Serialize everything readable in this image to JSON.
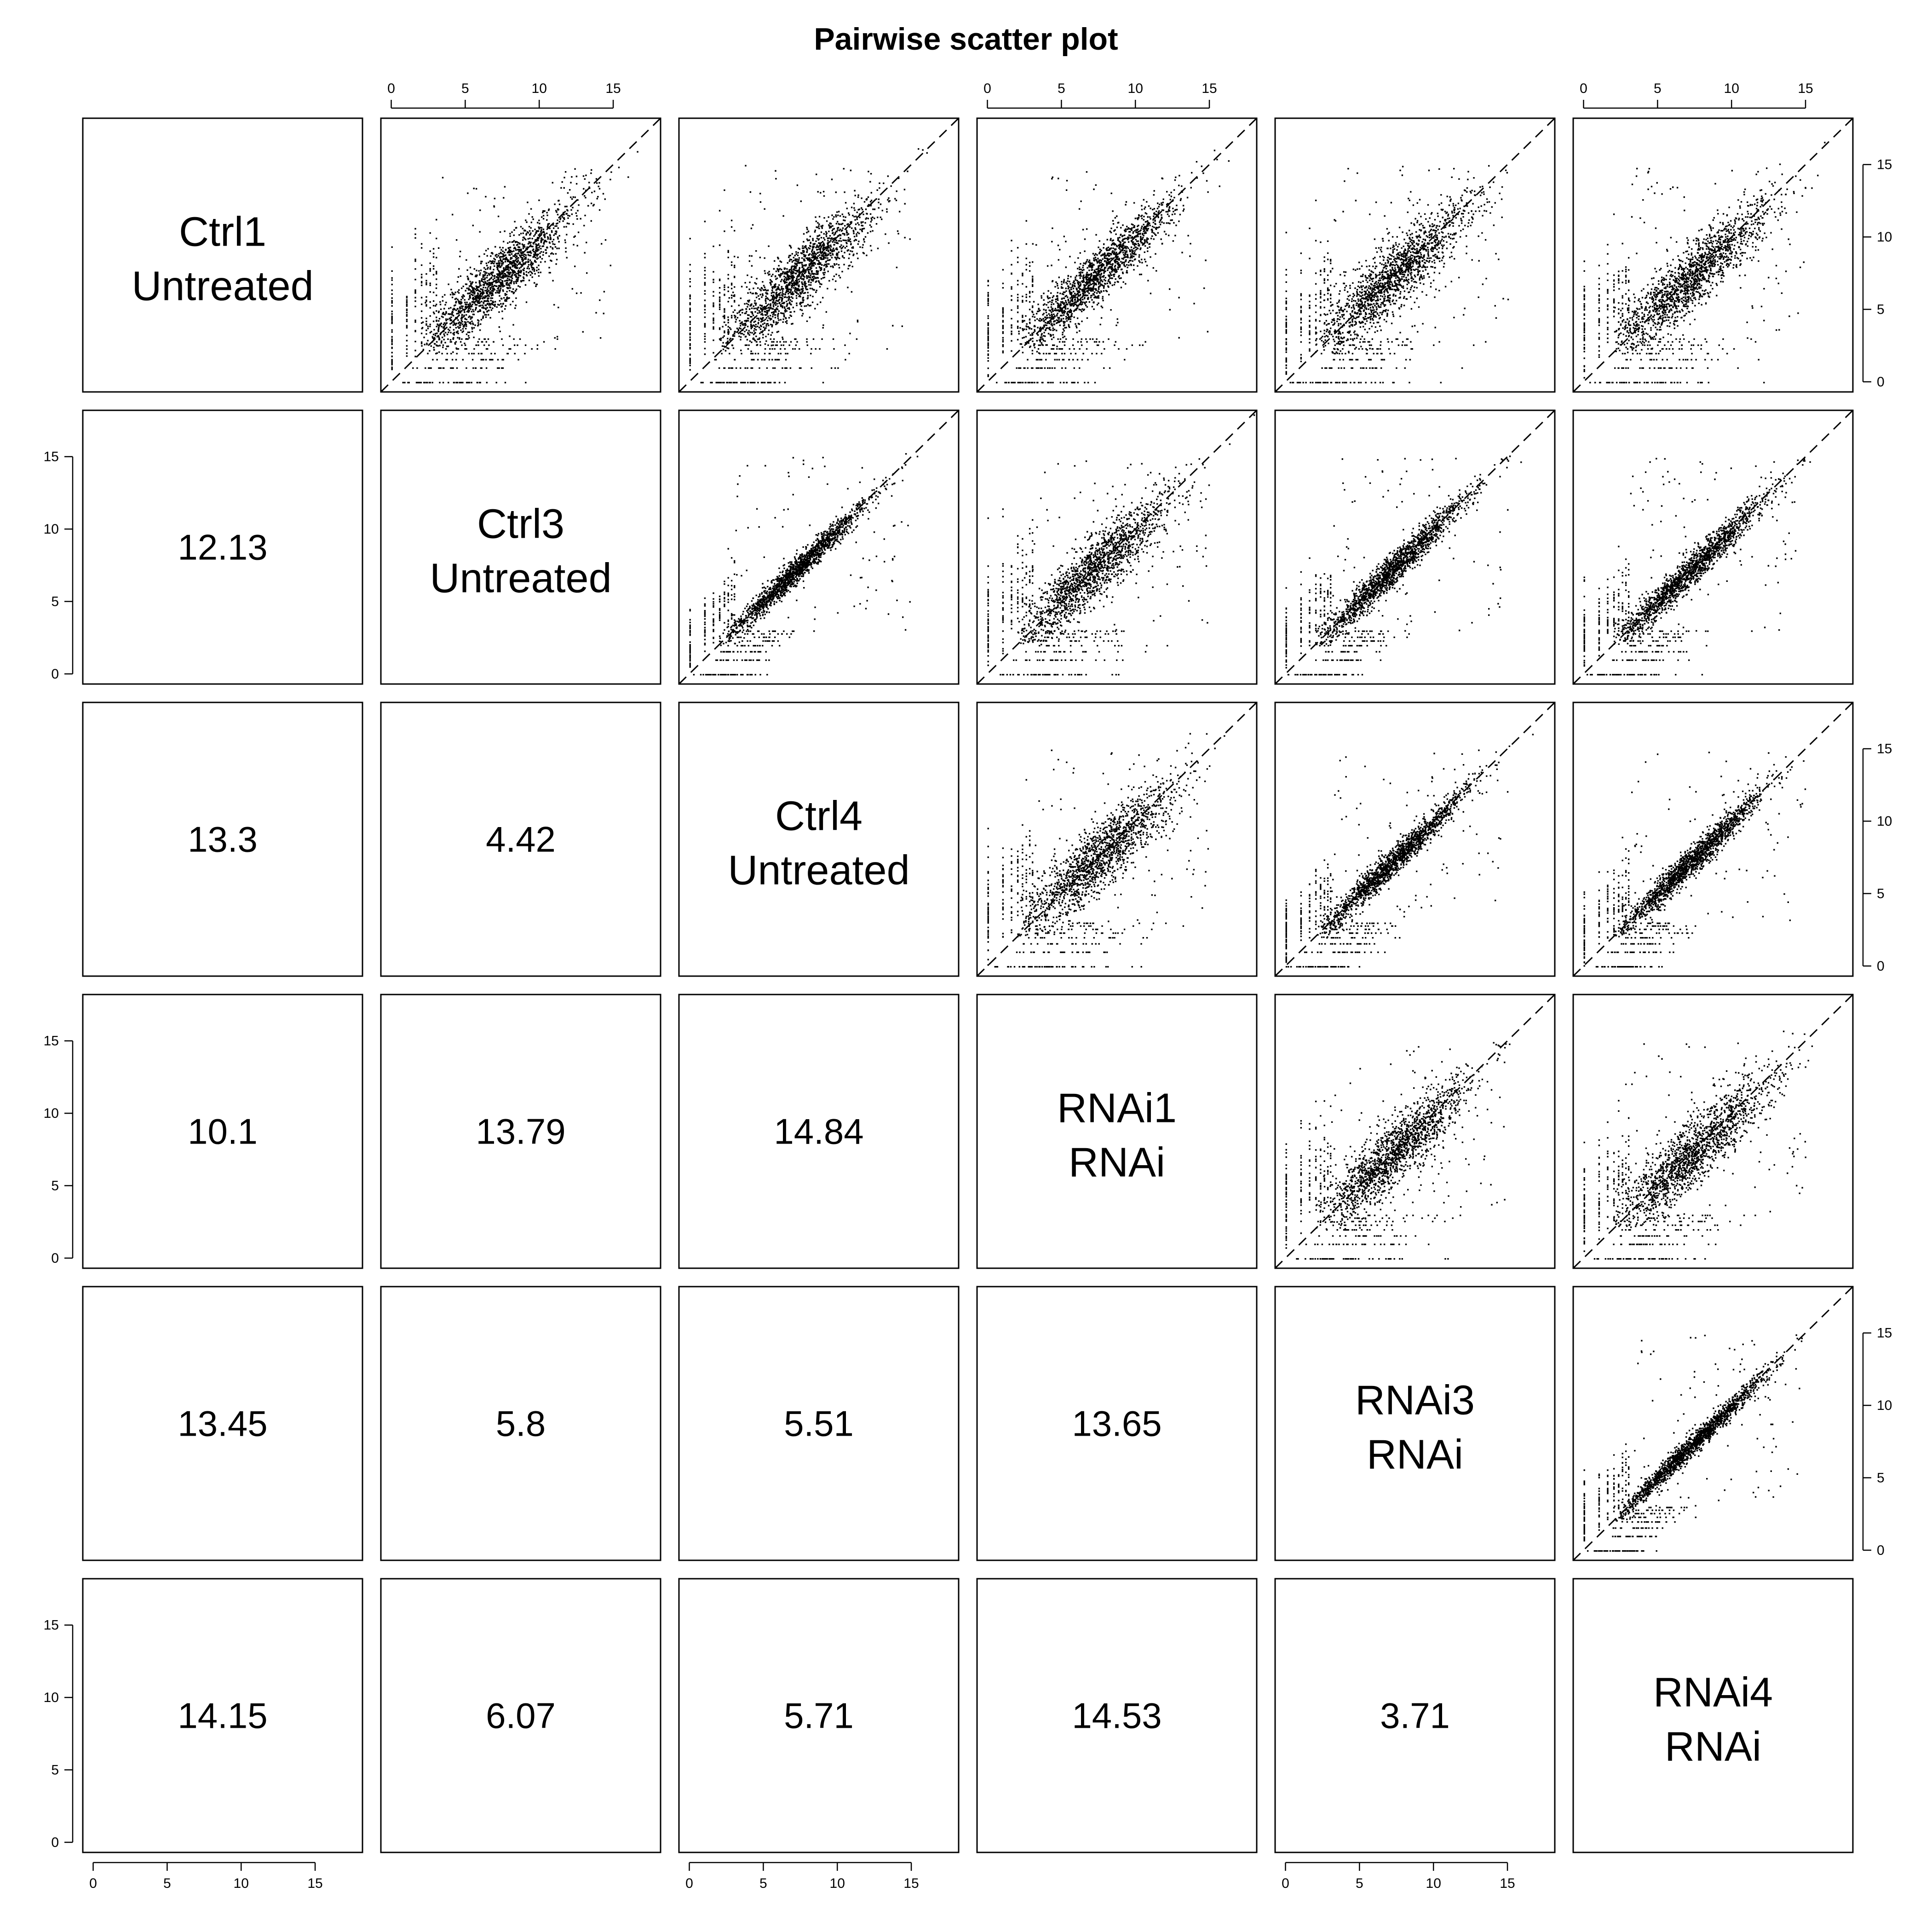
{
  "title": "Pairwise scatter plot",
  "chart_data": {
    "type": "scatter",
    "plot_kind": "pairwise scatter matrix",
    "variables": [
      {
        "name": "Ctrl1",
        "group": "Untreated"
      },
      {
        "name": "Ctrl3",
        "group": "Untreated"
      },
      {
        "name": "Ctrl4",
        "group": "Untreated"
      },
      {
        "name": "RNAi1",
        "group": "RNAi"
      },
      {
        "name": "RNAi3",
        "group": "RNAi"
      },
      {
        "name": "RNAi4",
        "group": "RNAi"
      }
    ],
    "lower_panel_values": [
      {
        "row": 2,
        "col": 1,
        "value": "12.13"
      },
      {
        "row": 3,
        "col": 1,
        "value": "13.3"
      },
      {
        "row": 3,
        "col": 2,
        "value": "4.42"
      },
      {
        "row": 4,
        "col": 1,
        "value": "10.1"
      },
      {
        "row": 4,
        "col": 2,
        "value": "13.79"
      },
      {
        "row": 4,
        "col": 3,
        "value": "14.84"
      },
      {
        "row": 5,
        "col": 1,
        "value": "13.45"
      },
      {
        "row": 5,
        "col": 2,
        "value": "5.8"
      },
      {
        "row": 5,
        "col": 3,
        "value": "5.51"
      },
      {
        "row": 5,
        "col": 4,
        "value": "13.65"
      },
      {
        "row": 6,
        "col": 1,
        "value": "14.15"
      },
      {
        "row": 6,
        "col": 2,
        "value": "6.07"
      },
      {
        "row": 6,
        "col": 3,
        "value": "5.71"
      },
      {
        "row": 6,
        "col": 4,
        "value": "14.53"
      },
      {
        "row": 6,
        "col": 5,
        "value": "3.71"
      }
    ],
    "axis_range": [
      -0.7,
      18.2
    ],
    "ticks": [
      0,
      5,
      10,
      15
    ],
    "reference_line": "y = x (dashed)",
    "upper_panels": {
      "r1c2": {
        "spread": 1.7
      },
      "r1c3": {
        "spread": 1.9
      },
      "r1c4": {
        "spread": 1.5
      },
      "r1c5": {
        "spread": 1.9
      },
      "r1c6": {
        "spread": 1.8
      },
      "r2c3": {
        "spread": 0.7
      },
      "r2c4": {
        "spread": 1.8
      },
      "r2c5": {
        "spread": 0.9
      },
      "r2c6": {
        "spread": 0.9
      },
      "r3c4": {
        "spread": 1.9
      },
      "r3c5": {
        "spread": 0.8
      },
      "r3c6": {
        "spread": 0.8
      },
      "r4c5": {
        "spread": 1.8
      },
      "r4c6": {
        "spread": 1.8
      },
      "r5c6": {
        "spread": 0.6
      }
    },
    "grid": false,
    "legend": "none"
  }
}
